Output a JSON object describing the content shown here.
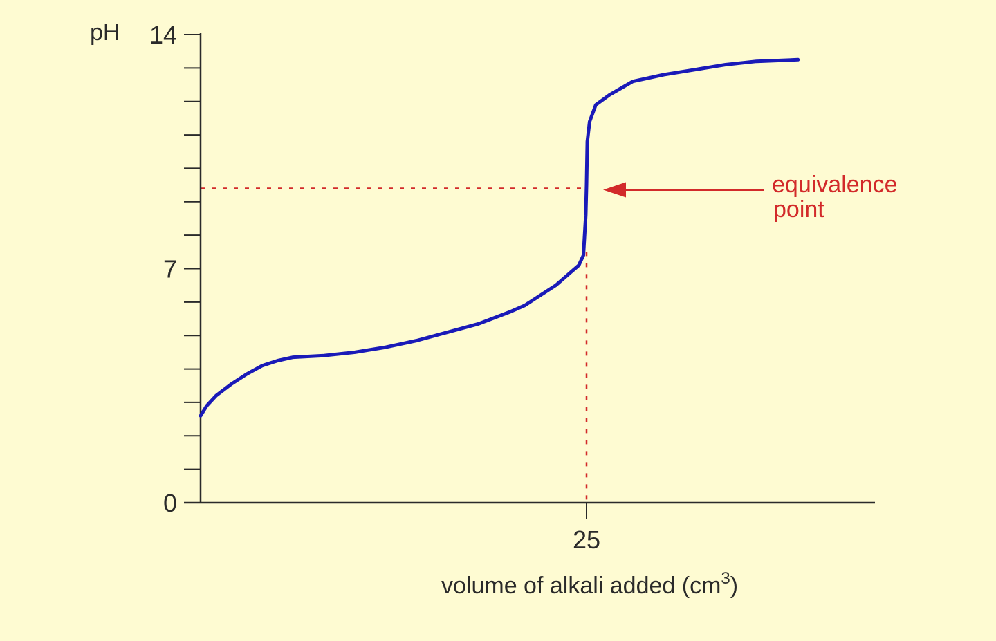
{
  "chart_data": {
    "type": "line",
    "xlabel": "volume of alkali added (cm",
    "xlabel_superscript": "3",
    "xlabel_close": ")",
    "ylabel": "pH",
    "ylim": [
      0,
      14
    ],
    "xlim": [
      0,
      40
    ],
    "y_ticks_labeled": [
      {
        "value": 0,
        "label": "0"
      },
      {
        "value": 7,
        "label": "7"
      },
      {
        "value": 14,
        "label": "14"
      }
    ],
    "y_minor_ticks": [
      1,
      2,
      3,
      4,
      5,
      6,
      8,
      9,
      10,
      11,
      12,
      13
    ],
    "x_ticks_labeled": [
      {
        "value": 25,
        "label": "25"
      }
    ],
    "series": [
      {
        "color": "#1a1ab8",
        "x": [
          0,
          0.4,
          1,
          2,
          3,
          4,
          5,
          6,
          8,
          10,
          12,
          14,
          16,
          18,
          20,
          21,
          22,
          23,
          24,
          24.5,
          24.8,
          24.95,
          25,
          25.05,
          25.2,
          25.6,
          26.5,
          28,
          30,
          32,
          34,
          36,
          38.7
        ],
        "y": [
          2.6,
          2.9,
          3.2,
          3.55,
          3.85,
          4.1,
          4.25,
          4.35,
          4.4,
          4.5,
          4.65,
          4.85,
          5.1,
          5.35,
          5.7,
          5.9,
          6.2,
          6.5,
          6.9,
          7.1,
          7.4,
          8.6,
          9.5,
          10.8,
          11.4,
          11.9,
          12.2,
          12.6,
          12.8,
          12.95,
          13.1,
          13.2,
          13.25
        ]
      }
    ],
    "annotations": [
      {
        "text_line1": "equivalence",
        "text_line2": "point",
        "color": "#d22a2a",
        "x": 25,
        "y": 9.4
      }
    ],
    "grid": false
  }
}
